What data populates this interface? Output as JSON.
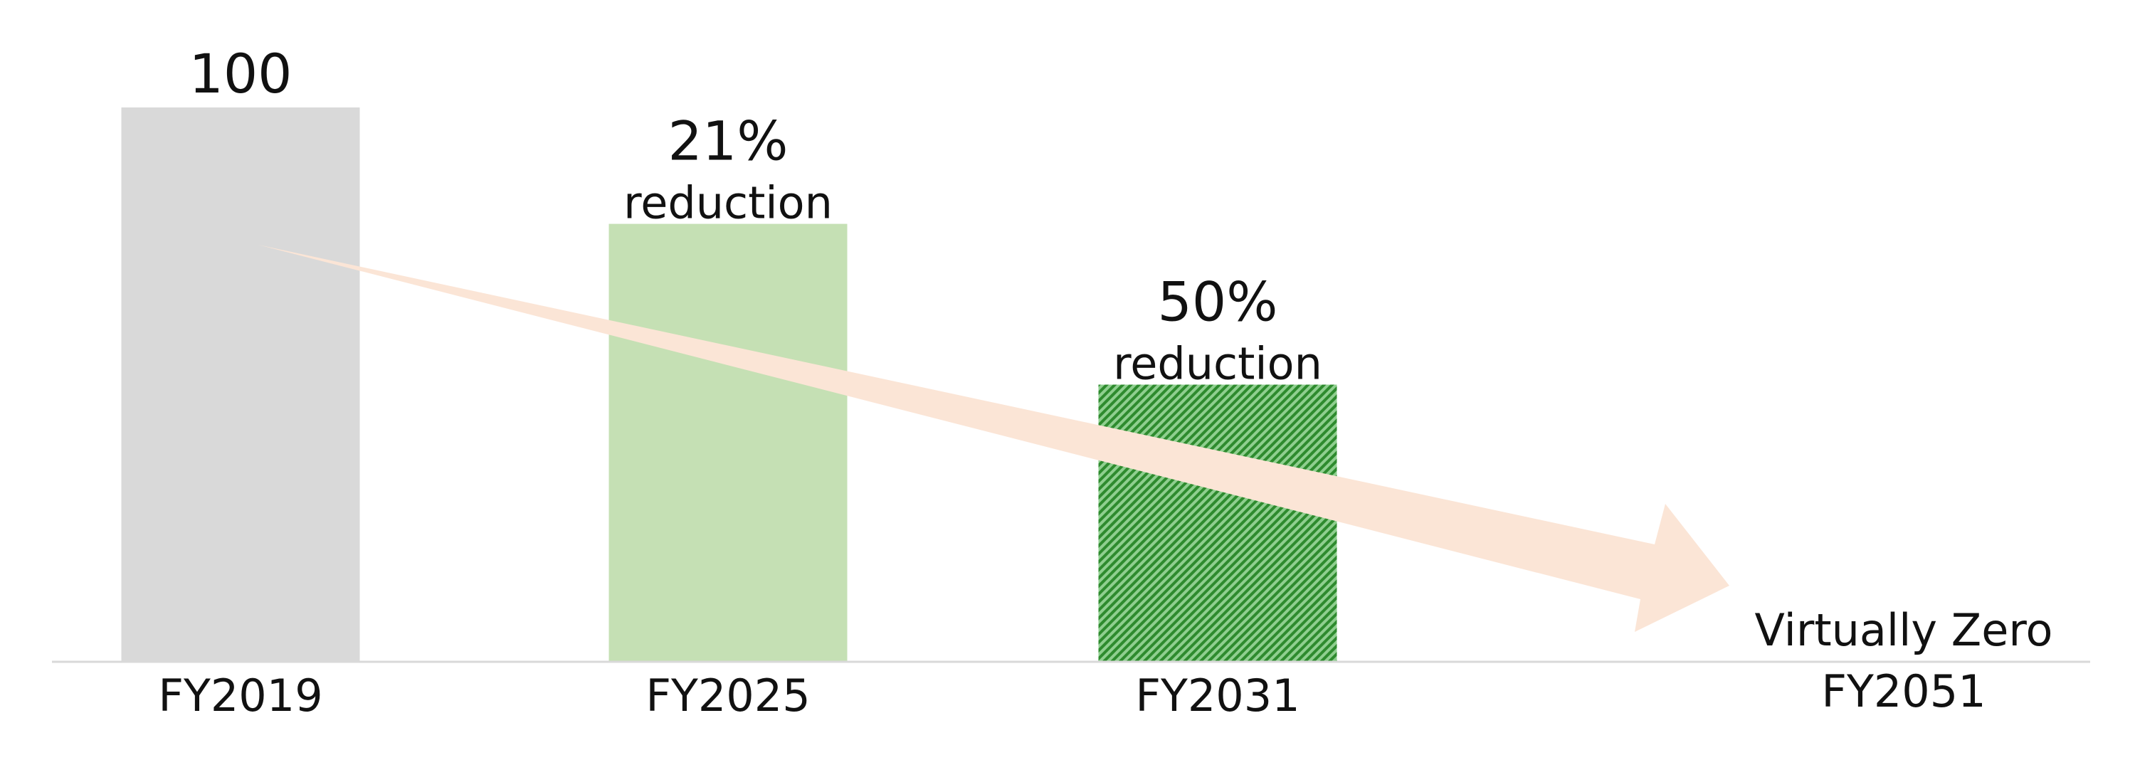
{
  "chart_data": {
    "type": "bar",
    "categories": [
      "FY2019",
      "FY2025",
      "FY2031",
      "FY2051"
    ],
    "values": [
      100,
      79,
      50,
      0
    ],
    "annotations": [
      null,
      [
        "21%",
        "reduction"
      ],
      [
        "50%",
        "reduction"
      ],
      [
        "Virtually Zero"
      ]
    ],
    "colors": [
      "#d9d9d9",
      "#c5e0b4",
      "#3f9e3f",
      "#3f9e3f"
    ],
    "hatch": [
      false,
      false,
      true,
      false
    ],
    "ylim": [
      0,
      100
    ]
  }
}
